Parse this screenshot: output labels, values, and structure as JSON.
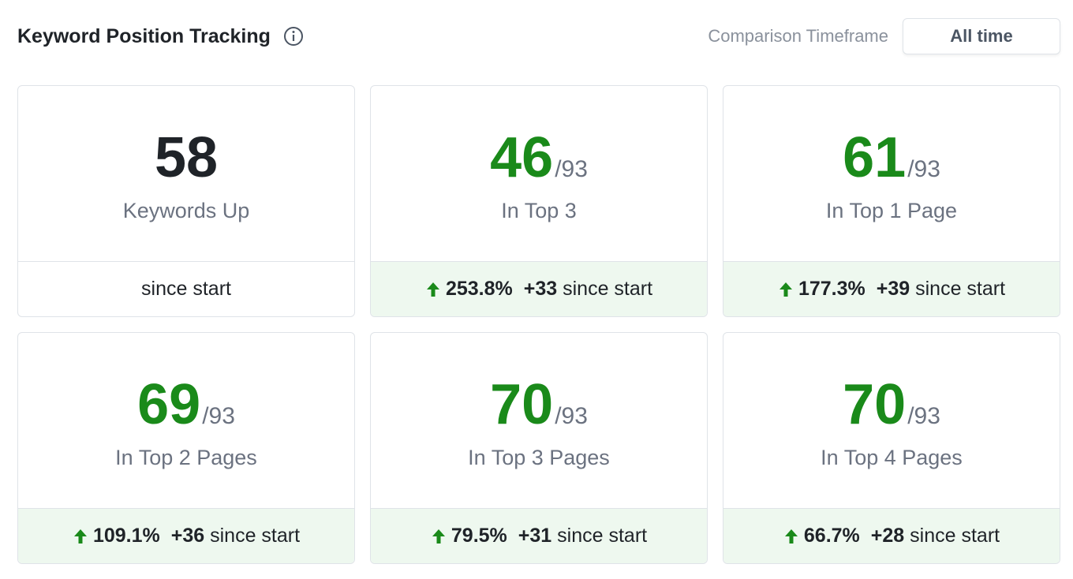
{
  "header": {
    "title": "Keyword Position Tracking",
    "timeframe_label": "Comparison Timeframe",
    "timeframe_button": "All time"
  },
  "cards": [
    {
      "value": "58",
      "label": "Keywords Up",
      "footer": "since start"
    },
    {
      "value": "46",
      "total": "/93",
      "label": "In Top 3",
      "change": "253.8%",
      "delta": "+33",
      "footer": "since start"
    },
    {
      "value": "61",
      "total": "/93",
      "label": "In Top 1 Page",
      "change": "177.3%",
      "delta": "+39",
      "footer": "since start"
    },
    {
      "value": "69",
      "total": "/93",
      "label": "In Top 2 Pages",
      "change": "109.1%",
      "delta": "+36",
      "footer": "since start"
    },
    {
      "value": "70",
      "total": "/93",
      "label": "In Top 3 Pages",
      "change": "79.5%",
      "delta": "+31",
      "footer": "since start"
    },
    {
      "value": "70",
      "total": "/93",
      "label": "In Top 4 Pages",
      "change": "66.7%",
      "delta": "+28",
      "footer": "since start"
    }
  ]
}
